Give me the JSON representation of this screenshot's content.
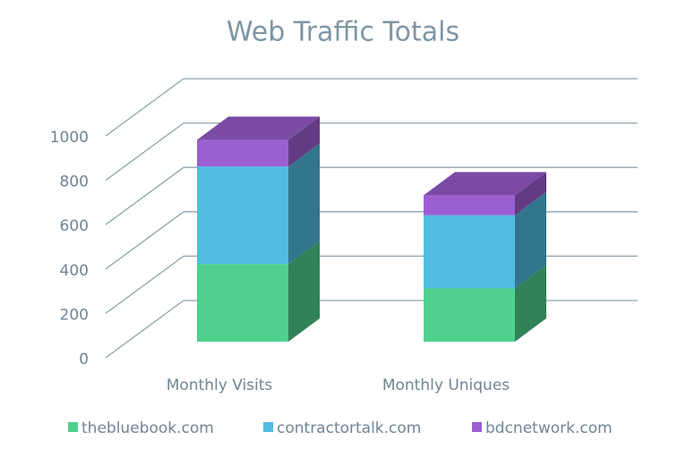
{
  "chart_data": {
    "type": "bar3d_stacked",
    "title": "Web Traffic Totals",
    "categories": [
      "Monthly Visits",
      "Monthly Uniques"
    ],
    "series": [
      {
        "name": "thebluebook.com",
        "color": "#4fd08f",
        "values": [
          350,
          240
        ]
      },
      {
        "name": "contractortalk.com",
        "color": "#52bce0",
        "values": [
          440,
          330
        ]
      },
      {
        "name": "bdcnetwork.com",
        "color": "#9c5fd3",
        "values": [
          120,
          90
        ]
      }
    ],
    "ylim": [
      0,
      1000
    ],
    "yticks": [
      0,
      200,
      400,
      600,
      800,
      1000
    ],
    "grid": true,
    "legend": "bottom"
  }
}
